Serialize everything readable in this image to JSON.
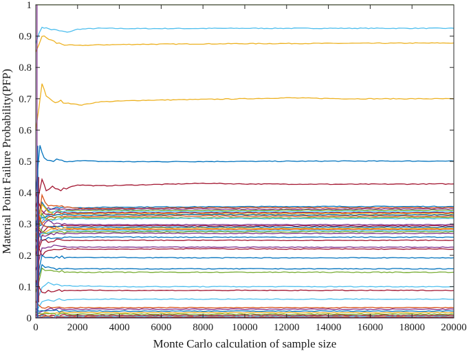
{
  "chart_data": {
    "type": "line",
    "title": "",
    "xlabel": "Monte Carlo calculation of sample size",
    "ylabel": "Material Point Failure Probability(PFP)",
    "xlim": [
      0,
      20000
    ],
    "ylim": [
      0,
      1
    ],
    "xticks": [
      0,
      2000,
      4000,
      6000,
      8000,
      10000,
      12000,
      14000,
      16000,
      18000,
      20000
    ],
    "yticks": [
      0,
      0.1,
      0.2,
      0.3,
      0.4,
      0.5,
      0.6,
      0.7,
      0.8,
      0.9,
      1
    ],
    "ytick_labels": [
      "0",
      "0.1",
      "0.2",
      "0.3",
      "0.4",
      "0.5",
      "0.6",
      "0.7",
      "0.8",
      "0.9",
      "1"
    ],
    "grid": false,
    "legend": "none",
    "colors": [
      "#0072BD",
      "#D95319",
      "#EDB120",
      "#7E2F8E",
      "#77AC30",
      "#4DBEEE",
      "#A2142F"
    ],
    "series": [
      {
        "color": "#77AC30",
        "x": [
          0,
          20000
        ],
        "values": [
          1.0,
          1.0
        ]
      },
      {
        "color": "#4DBEEE",
        "x": [
          0,
          300,
          500,
          1000,
          1500,
          2000,
          3000,
          5000,
          10000,
          15000,
          20000
        ],
        "values": [
          0.88,
          0.93,
          0.925,
          0.918,
          0.912,
          0.922,
          0.925,
          0.924,
          0.925,
          0.925,
          0.925
        ]
      },
      {
        "color": "#EDB120",
        "x": [
          0,
          300,
          500,
          1000,
          1500,
          2000,
          3000,
          5000,
          10000,
          15000,
          20000
        ],
        "values": [
          0.85,
          0.9,
          0.895,
          0.878,
          0.872,
          0.87,
          0.872,
          0.874,
          0.876,
          0.877,
          0.878
        ]
      },
      {
        "color": "#EDB120",
        "x": [
          0,
          300,
          500,
          800,
          1200,
          1800,
          2200,
          3000,
          5000,
          10000,
          12000,
          15000,
          20000
        ],
        "values": [
          0.6,
          0.745,
          0.71,
          0.69,
          0.692,
          0.683,
          0.68,
          0.69,
          0.695,
          0.7,
          0.703,
          0.7,
          0.7
        ]
      },
      {
        "color": "#0072BD",
        "x": [
          0,
          200,
          400,
          700,
          1000,
          1500,
          2000,
          3000,
          5000,
          10000,
          15000,
          20000
        ],
        "values": [
          0.4,
          0.55,
          0.51,
          0.5,
          0.505,
          0.498,
          0.503,
          0.5,
          0.499,
          0.5,
          0.501,
          0.501
        ]
      },
      {
        "color": "#A2142F",
        "x": [
          0,
          300,
          500,
          800,
          1200,
          2000,
          3000,
          5000,
          8000,
          10000,
          15000,
          20000
        ],
        "values": [
          0.35,
          0.44,
          0.405,
          0.42,
          0.41,
          0.425,
          0.422,
          0.425,
          0.43,
          0.428,
          0.427,
          0.428
        ]
      },
      {
        "color": "#0072BD",
        "x": [
          0,
          300,
          600,
          1000,
          2000,
          4000,
          8000,
          12000,
          16000,
          20000
        ],
        "values": [
          0.3,
          0.37,
          0.345,
          0.355,
          0.352,
          0.354,
          0.355,
          0.356,
          0.356,
          0.356
        ]
      },
      {
        "color": "#D95319",
        "x": [
          0,
          300,
          600,
          1000,
          2000,
          4000,
          8000,
          12000,
          16000,
          20000
        ],
        "values": [
          0.25,
          0.39,
          0.355,
          0.36,
          0.35,
          0.35,
          0.352,
          0.352,
          0.352,
          0.352
        ]
      },
      {
        "color": "#7E2F8E",
        "x": [
          0,
          300,
          600,
          1000,
          2000,
          4000,
          8000,
          12000,
          16000,
          20000
        ],
        "values": [
          0.28,
          0.33,
          0.35,
          0.345,
          0.347,
          0.348,
          0.348,
          0.347,
          0.348,
          0.348
        ]
      },
      {
        "color": "#77AC30",
        "x": [
          0,
          300,
          600,
          1000,
          2000,
          4000,
          8000,
          12000,
          16000,
          20000
        ],
        "values": [
          0.32,
          0.36,
          0.34,
          0.343,
          0.344,
          0.344,
          0.343,
          0.344,
          0.344,
          0.344
        ]
      },
      {
        "color": "#4DBEEE",
        "x": [
          0,
          300,
          600,
          1000,
          2000,
          4000,
          8000,
          12000,
          16000,
          20000
        ],
        "values": [
          0.27,
          0.31,
          0.33,
          0.34,
          0.338,
          0.34,
          0.34,
          0.34,
          0.34,
          0.34
        ]
      },
      {
        "color": "#A2142F",
        "x": [
          0,
          300,
          600,
          1000,
          2000,
          4000,
          8000,
          12000,
          16000,
          20000
        ],
        "values": [
          0.4,
          0.34,
          0.33,
          0.336,
          0.335,
          0.336,
          0.336,
          0.336,
          0.336,
          0.336
        ]
      },
      {
        "color": "#EDB120",
        "x": [
          0,
          300,
          600,
          1000,
          2000,
          4000,
          8000,
          12000,
          16000,
          20000
        ],
        "values": [
          0.2,
          0.36,
          0.335,
          0.33,
          0.332,
          0.333,
          0.332,
          0.333,
          0.333,
          0.333
        ]
      },
      {
        "color": "#0072BD",
        "x": [
          0,
          300,
          600,
          1000,
          2000,
          4000,
          8000,
          12000,
          16000,
          20000
        ],
        "values": [
          0.3,
          0.32,
          0.325,
          0.33,
          0.328,
          0.329,
          0.33,
          0.329,
          0.329,
          0.329
        ]
      },
      {
        "color": "#D95319",
        "x": [
          0,
          300,
          600,
          1000,
          2000,
          4000,
          8000,
          12000,
          16000,
          20000
        ],
        "values": [
          0.33,
          0.3,
          0.32,
          0.325,
          0.324,
          0.325,
          0.326,
          0.325,
          0.325,
          0.325
        ]
      },
      {
        "color": "#77AC30",
        "x": [
          0,
          300,
          600,
          1000,
          2000,
          4000,
          8000,
          12000,
          16000,
          20000
        ],
        "values": [
          0.25,
          0.33,
          0.31,
          0.32,
          0.32,
          0.321,
          0.32,
          0.32,
          0.321,
          0.321
        ]
      },
      {
        "color": "#4DBEEE",
        "x": [
          0,
          300,
          600,
          1000,
          2000,
          4000,
          8000,
          12000,
          16000,
          20000
        ],
        "values": [
          0.35,
          0.32,
          0.31,
          0.316,
          0.317,
          0.317,
          0.318,
          0.317,
          0.317,
          0.317
        ]
      },
      {
        "color": "#7E2F8E",
        "x": [
          0,
          300,
          600,
          1000,
          2000,
          4000,
          8000,
          12000,
          16000,
          20000
        ],
        "values": [
          0.22,
          0.29,
          0.31,
          0.3,
          0.298,
          0.298,
          0.298,
          0.298,
          0.298,
          0.298
        ]
      },
      {
        "color": "#A2142F",
        "x": [
          0,
          300,
          600,
          1000,
          2000,
          4000,
          8000,
          12000,
          16000,
          20000
        ],
        "values": [
          0.3,
          0.27,
          0.29,
          0.295,
          0.294,
          0.295,
          0.294,
          0.294,
          0.294,
          0.294
        ]
      },
      {
        "color": "#0072BD",
        "x": [
          0,
          300,
          600,
          1000,
          2000,
          4000,
          8000,
          12000,
          16000,
          20000
        ],
        "values": [
          0.28,
          0.3,
          0.29,
          0.291,
          0.29,
          0.29,
          0.29,
          0.29,
          0.29,
          0.29
        ]
      },
      {
        "color": "#EDB120",
        "x": [
          0,
          300,
          600,
          1000,
          2000,
          4000,
          8000,
          12000,
          16000,
          20000
        ],
        "values": [
          0.2,
          0.26,
          0.28,
          0.287,
          0.286,
          0.286,
          0.287,
          0.286,
          0.286,
          0.286
        ]
      },
      {
        "color": "#D95319",
        "x": [
          0,
          300,
          600,
          1000,
          2000,
          4000,
          8000,
          12000,
          16000,
          20000
        ],
        "values": [
          0.35,
          0.3,
          0.29,
          0.283,
          0.283,
          0.283,
          0.283,
          0.283,
          0.283,
          0.283
        ]
      },
      {
        "color": "#4DBEEE",
        "x": [
          0,
          300,
          600,
          1000,
          2000,
          4000,
          8000,
          12000,
          16000,
          20000
        ],
        "values": [
          0.25,
          0.27,
          0.275,
          0.279,
          0.279,
          0.279,
          0.279,
          0.279,
          0.279,
          0.279
        ]
      },
      {
        "color": "#77AC30",
        "x": [
          0,
          300,
          600,
          1000,
          2000,
          4000,
          8000,
          12000,
          16000,
          20000
        ],
        "values": [
          0.3,
          0.28,
          0.27,
          0.275,
          0.275,
          0.275,
          0.275,
          0.275,
          0.275,
          0.275
        ]
      },
      {
        "color": "#7E2F8E",
        "x": [
          0,
          300,
          600,
          1000,
          2000,
          4000,
          8000,
          12000,
          16000,
          20000
        ],
        "values": [
          0.2,
          0.26,
          0.265,
          0.27,
          0.27,
          0.271,
          0.27,
          0.27,
          0.27,
          0.27
        ]
      },
      {
        "color": "#0072BD",
        "x": [
          0,
          300,
          600,
          1000,
          2000,
          4000,
          8000,
          12000,
          16000,
          20000
        ],
        "values": [
          0.3,
          0.25,
          0.255,
          0.258,
          0.258,
          0.258,
          0.258,
          0.258,
          0.258,
          0.258
        ]
      },
      {
        "color": "#A2142F",
        "x": [
          0,
          300,
          600,
          1000,
          2000,
          4000,
          8000,
          12000,
          16000,
          20000
        ],
        "values": [
          0.2,
          0.25,
          0.245,
          0.248,
          0.248,
          0.248,
          0.248,
          0.248,
          0.248,
          0.248
        ]
      },
      {
        "color": "#7E2F8E",
        "x": [
          0,
          300,
          600,
          1000,
          2000,
          4000,
          8000,
          12000,
          16000,
          20000
        ],
        "values": [
          0.15,
          0.22,
          0.23,
          0.228,
          0.226,
          0.226,
          0.226,
          0.226,
          0.226,
          0.226
        ]
      },
      {
        "color": "#A2142F",
        "x": [
          0,
          300,
          600,
          1000,
          2000,
          4000,
          8000,
          12000,
          16000,
          20000
        ],
        "values": [
          0.25,
          0.2,
          0.215,
          0.22,
          0.22,
          0.22,
          0.221,
          0.22,
          0.22,
          0.22
        ]
      },
      {
        "color": "#0072BD",
        "x": [
          0,
          300,
          600,
          1000,
          2000,
          4000,
          8000,
          12000,
          16000,
          20000
        ],
        "values": [
          0.1,
          0.2,
          0.19,
          0.195,
          0.193,
          0.193,
          0.192,
          0.192,
          0.192,
          0.192
        ]
      },
      {
        "color": "#0072BD",
        "x": [
          0,
          300,
          600,
          1000,
          2000,
          4000,
          8000,
          12000,
          16000,
          20000
        ],
        "values": [
          0.1,
          0.17,
          0.16,
          0.158,
          0.157,
          0.157,
          0.157,
          0.157,
          0.157,
          0.157
        ]
      },
      {
        "color": "#77AC30",
        "x": [
          0,
          300,
          600,
          1000,
          2000,
          4000,
          8000,
          12000,
          16000,
          20000
        ],
        "values": [
          0.08,
          0.16,
          0.15,
          0.148,
          0.146,
          0.146,
          0.146,
          0.146,
          0.146,
          0.146
        ]
      },
      {
        "color": "#4DBEEE",
        "x": [
          0,
          300,
          600,
          1000,
          2000,
          4000,
          8000,
          12000,
          16000,
          20000
        ],
        "values": [
          0.05,
          0.1,
          0.11,
          0.105,
          0.102,
          0.1,
          0.1,
          0.1,
          0.1,
          0.1
        ]
      },
      {
        "color": "#A2142F",
        "x": [
          0,
          300,
          600,
          1000,
          2000,
          4000,
          8000,
          12000,
          16000,
          20000
        ],
        "values": [
          0.12,
          0.08,
          0.085,
          0.088,
          0.088,
          0.088,
          0.088,
          0.088,
          0.088,
          0.088
        ]
      },
      {
        "color": "#4DBEEE",
        "x": [
          0,
          300,
          600,
          1000,
          2000,
          4000,
          8000,
          12000,
          16000,
          20000
        ],
        "values": [
          0.02,
          0.05,
          0.055,
          0.058,
          0.06,
          0.06,
          0.06,
          0.06,
          0.06,
          0.06
        ]
      },
      {
        "color": "#D95319",
        "x": [
          0,
          300,
          600,
          1000,
          2000,
          4000,
          8000,
          12000,
          16000,
          20000
        ],
        "values": [
          0.05,
          0.035,
          0.033,
          0.033,
          0.033,
          0.033,
          0.033,
          0.033,
          0.033,
          0.033
        ]
      },
      {
        "color": "#7E2F8E",
        "x": [
          0,
          300,
          600,
          1000,
          2000,
          4000,
          8000,
          12000,
          16000,
          20000
        ],
        "values": [
          0.01,
          0.025,
          0.028,
          0.028,
          0.028,
          0.028,
          0.028,
          0.028,
          0.028,
          0.028
        ]
      },
      {
        "color": "#0072BD",
        "x": [
          0,
          300,
          600,
          1000,
          2000,
          4000,
          8000,
          12000,
          16000,
          20000
        ],
        "values": [
          0.03,
          0.02,
          0.022,
          0.022,
          0.022,
          0.022,
          0.022,
          0.022,
          0.022,
          0.022
        ]
      },
      {
        "color": "#EDB120",
        "x": [
          0,
          300,
          600,
          1000,
          2000,
          4000,
          8000,
          12000,
          16000,
          20000
        ],
        "values": [
          0.0,
          0.015,
          0.017,
          0.017,
          0.017,
          0.017,
          0.017,
          0.017,
          0.017,
          0.017
        ]
      },
      {
        "color": "#77AC30",
        "x": [
          0,
          300,
          600,
          1000,
          2000,
          4000,
          8000,
          12000,
          16000,
          20000
        ],
        "values": [
          0.02,
          0.012,
          0.012,
          0.012,
          0.012,
          0.012,
          0.012,
          0.012,
          0.012,
          0.012
        ]
      },
      {
        "color": "#A2142F",
        "x": [
          0,
          300,
          600,
          1000,
          2000,
          4000,
          8000,
          12000,
          16000,
          20000
        ],
        "values": [
          0.01,
          0.008,
          0.008,
          0.008,
          0.008,
          0.008,
          0.008,
          0.008,
          0.008,
          0.008
        ]
      },
      {
        "color": "#4DBEEE",
        "x": [
          0,
          300,
          600,
          1000,
          2000,
          4000,
          8000,
          12000,
          16000,
          20000
        ],
        "values": [
          0.0,
          0.005,
          0.005,
          0.005,
          0.005,
          0.005,
          0.005,
          0.005,
          0.005,
          0.005
        ]
      },
      {
        "color": "#D95319",
        "x": [
          0,
          300,
          600,
          1000,
          2000,
          4000,
          8000,
          12000,
          16000,
          20000
        ],
        "values": [
          0.0,
          0.003,
          0.003,
          0.003,
          0.003,
          0.003,
          0.003,
          0.003,
          0.003,
          0.003
        ]
      },
      {
        "color": "#7E2F8E",
        "x": [
          0,
          20000
        ],
        "values": [
          0.001,
          0.001
        ]
      }
    ]
  }
}
